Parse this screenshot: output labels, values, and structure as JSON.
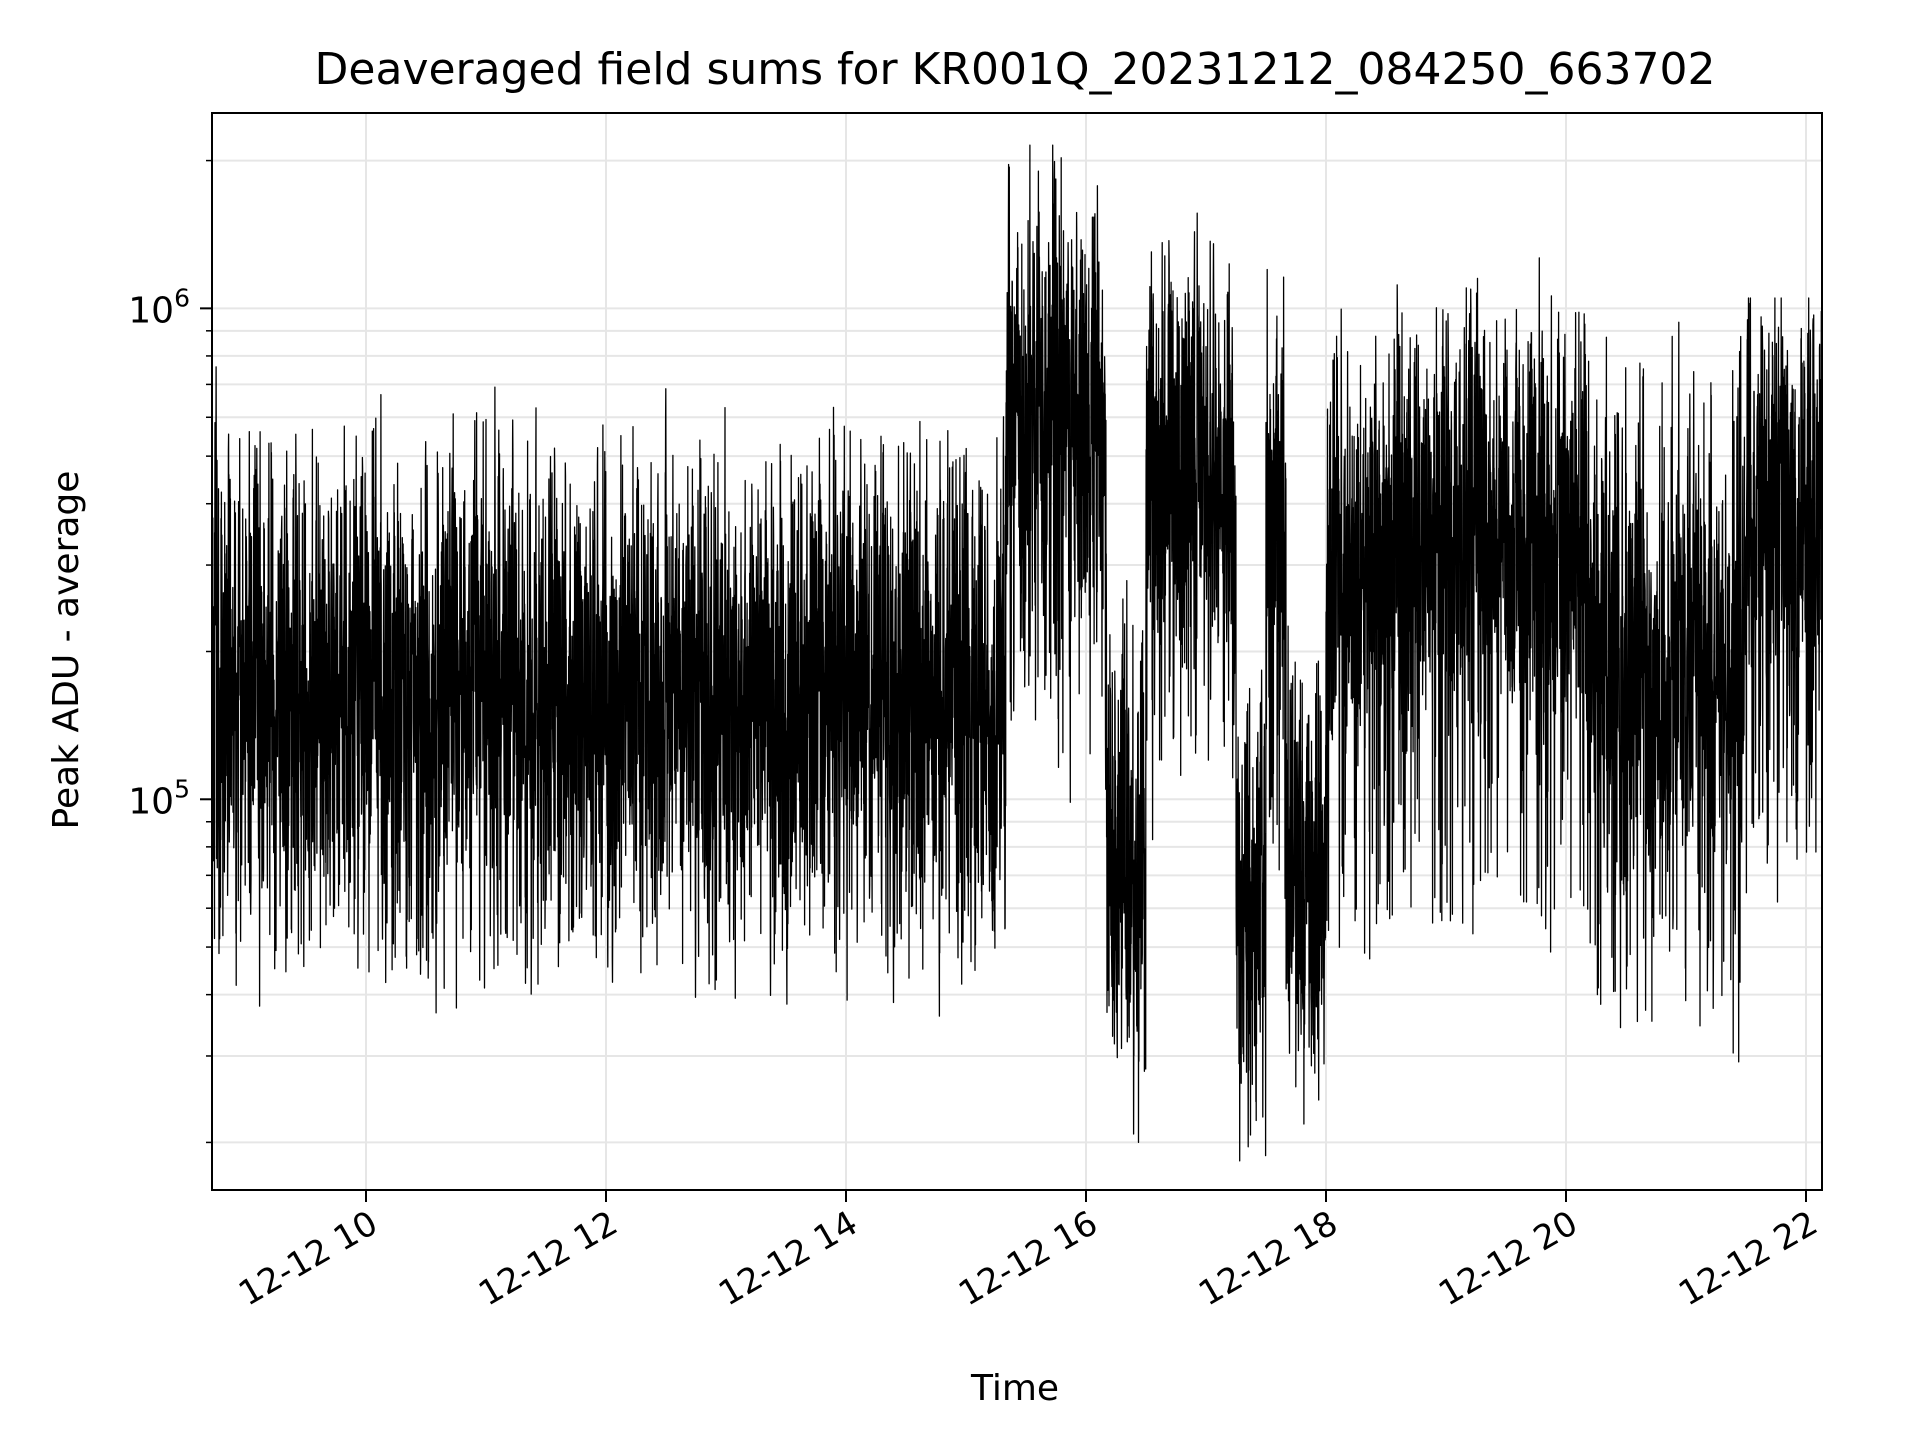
{
  "chart_data": {
    "type": "line",
    "title": "Deaveraged field sums for KR001Q_20231212_084250_663702",
    "xlabel": "Time",
    "ylabel": "Peak ADU - average",
    "x_axis": {
      "kind": "datetime",
      "range": [
        "2023-12-12T08:43:00",
        "2023-12-12T22:08:00"
      ],
      "ticks": [
        {
          "value": "2023-12-12T10:00:00",
          "label": "12-12 10"
        },
        {
          "value": "2023-12-12T12:00:00",
          "label": "12-12 12"
        },
        {
          "value": "2023-12-12T14:00:00",
          "label": "12-12 14"
        },
        {
          "value": "2023-12-12T16:00:00",
          "label": "12-12 16"
        },
        {
          "value": "2023-12-12T18:00:00",
          "label": "12-12 18"
        },
        {
          "value": "2023-12-12T20:00:00",
          "label": "12-12 20"
        },
        {
          "value": "2023-12-12T22:00:00",
          "label": "12-12 22"
        }
      ]
    },
    "y_axis": {
      "scale": "log",
      "range": [
        16000,
        2500000
      ],
      "ticks": [
        {
          "value": 100000,
          "base": "10",
          "exp": "5"
        },
        {
          "value": 1000000,
          "base": "10",
          "exp": "6"
        }
      ]
    },
    "grid": true,
    "legend": "none",
    "series": [
      {
        "color": "#000000",
        "segments": [
          {
            "start": "2023-12-12T08:43:00",
            "end": "2023-12-12T15:20:00",
            "center": 160000,
            "lo": 30000,
            "hi": 760000
          },
          {
            "start": "2023-12-12T15:20:00",
            "end": "2023-12-12T16:10:00",
            "center": 600000,
            "lo": 78000,
            "hi": 2150000
          },
          {
            "start": "2023-12-12T16:10:00",
            "end": "2023-12-12T16:30:00",
            "center": 75000,
            "lo": 20000,
            "hi": 350000
          },
          {
            "start": "2023-12-12T16:30:00",
            "end": "2023-12-12T17:15:00",
            "center": 450000,
            "lo": 70000,
            "hi": 1600000
          },
          {
            "start": "2023-12-12T17:15:00",
            "end": "2023-12-12T17:30:00",
            "center": 60000,
            "lo": 15500,
            "hi": 250000
          },
          {
            "start": "2023-12-12T17:30:00",
            "end": "2023-12-12T17:40:00",
            "center": 350000,
            "lo": 40000,
            "hi": 1200000
          },
          {
            "start": "2023-12-12T17:40:00",
            "end": "2023-12-12T18:00:00",
            "center": 70000,
            "lo": 20000,
            "hi": 300000
          },
          {
            "start": "2023-12-12T18:00:00",
            "end": "2023-12-12T20:10:00",
            "center": 320000,
            "lo": 29000,
            "hi": 1350000
          },
          {
            "start": "2023-12-12T20:10:00",
            "end": "2023-12-12T21:30:00",
            "center": 190000,
            "lo": 21000,
            "hi": 1350000
          },
          {
            "start": "2023-12-12T21:30:00",
            "end": "2023-12-12T22:08:00",
            "center": 350000,
            "lo": 45000,
            "hi": 1050000
          }
        ]
      }
    ]
  }
}
